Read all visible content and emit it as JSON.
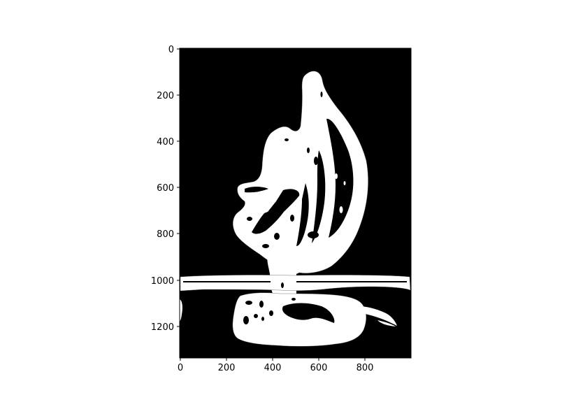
{
  "image": {
    "description_colors": {
      "background": "#000000",
      "foreground": "#ffffff",
      "contour": "#555555"
    },
    "x_axis": {
      "lim": [
        0,
        1000
      ],
      "ticks": [
        0,
        200,
        400,
        600,
        800
      ],
      "labels": [
        "0",
        "200",
        "400",
        "600",
        "800"
      ]
    },
    "y_axis": {
      "lim": [
        0,
        1330
      ],
      "ticks": [
        0,
        200,
        400,
        600,
        800,
        1000,
        1200
      ],
      "labels": [
        "0",
        "200",
        "400",
        "600",
        "800",
        "1000",
        "1200"
      ],
      "inverted": true
    }
  }
}
